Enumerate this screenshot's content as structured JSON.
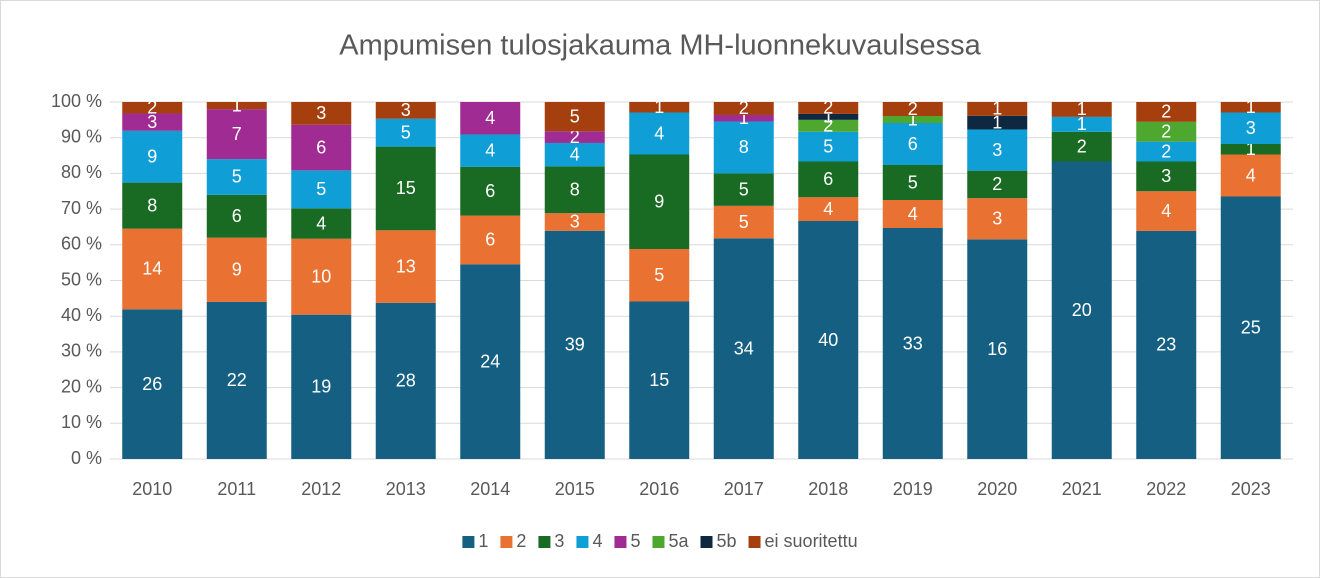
{
  "chart_data": {
    "type": "bar",
    "stacked": "percent",
    "title": "Ampumisen tulosjakauma MH-luonnekuvaulsessa",
    "categories": [
      "2010",
      "2011",
      "2012",
      "2013",
      "2014",
      "2015",
      "2016",
      "2017",
      "2018",
      "2019",
      "2020",
      "2021",
      "2022",
      "2023"
    ],
    "series": [
      {
        "name": "1",
        "color": "#156082",
        "values": [
          26,
          22,
          19,
          28,
          24,
          39,
          15,
          34,
          40,
          33,
          16,
          20,
          23,
          25
        ]
      },
      {
        "name": "2",
        "color": "#e97132",
        "values": [
          14,
          9,
          10,
          13,
          6,
          3,
          5,
          5,
          4,
          4,
          3,
          null,
          4,
          4
        ]
      },
      {
        "name": "3",
        "color": "#196b24",
        "values": [
          8,
          6,
          4,
          15,
          6,
          8,
          9,
          5,
          6,
          5,
          2,
          2,
          3,
          1
        ]
      },
      {
        "name": "4",
        "color": "#0f9ed5",
        "values": [
          9,
          5,
          5,
          5,
          4,
          4,
          4,
          8,
          5,
          6,
          3,
          1,
          2,
          3
        ]
      },
      {
        "name": "5",
        "color": "#a02b93",
        "values": [
          3,
          7,
          6,
          null,
          4,
          2,
          null,
          1,
          null,
          null,
          null,
          null,
          null,
          null
        ]
      },
      {
        "name": "5a",
        "color": "#4ea72e",
        "values": [
          null,
          null,
          null,
          null,
          null,
          null,
          null,
          null,
          2,
          1,
          null,
          null,
          2,
          null
        ]
      },
      {
        "name": "5b",
        "color": "#0e2841",
        "values": [
          null,
          null,
          null,
          null,
          null,
          null,
          null,
          null,
          1,
          null,
          1,
          null,
          null,
          null
        ]
      },
      {
        "name": "ei suoritettu",
        "color": "#a5400e",
        "values": [
          2,
          1,
          3,
          3,
          null,
          5,
          1,
          2,
          2,
          2,
          1,
          1,
          2,
          1
        ]
      }
    ],
    "ylim": [
      0,
      100
    ],
    "yticks": [
      {
        "value": 0,
        "label": "0 %"
      },
      {
        "value": 10,
        "label": "10 %"
      },
      {
        "value": 20,
        "label": "20 %"
      },
      {
        "value": 30,
        "label": "30 %"
      },
      {
        "value": 40,
        "label": "40 %"
      },
      {
        "value": 50,
        "label": "50 %"
      },
      {
        "value": 60,
        "label": "60 %"
      },
      {
        "value": 70,
        "label": "70 %"
      },
      {
        "value": 80,
        "label": "80 %"
      },
      {
        "value": 90,
        "label": "90 %"
      },
      {
        "value": 100,
        "label": "100 %"
      }
    ],
    "grid": true,
    "legend": "bottom"
  }
}
